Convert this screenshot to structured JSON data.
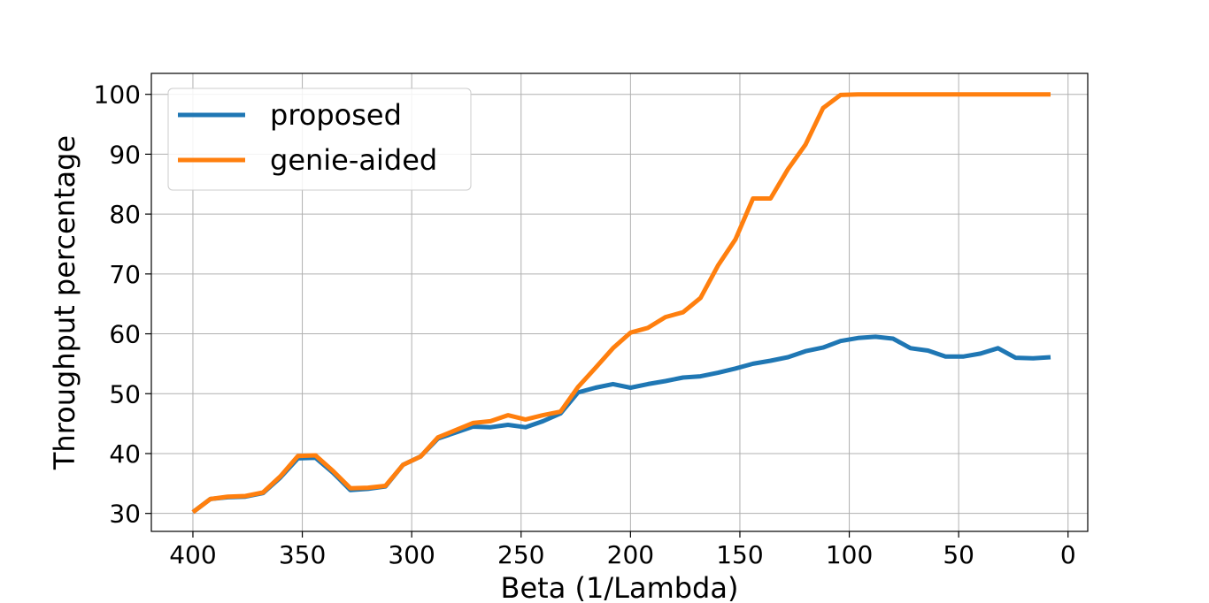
{
  "chart_data": {
    "type": "line",
    "title": "",
    "xlabel": "Beta (1/Lambda)",
    "ylabel": "Throughput percentage",
    "xlim": [
      419,
      -9
    ],
    "ylim": [
      27,
      103.5
    ],
    "x_inverted": true,
    "grid": true,
    "legend_position": "top-left",
    "xticks": [
      400,
      350,
      300,
      250,
      200,
      150,
      100,
      50,
      0
    ],
    "yticks": [
      30,
      40,
      50,
      60,
      70,
      80,
      90,
      100
    ],
    "x": [
      400,
      392,
      384,
      376,
      368,
      360,
      352,
      344,
      336,
      328,
      320,
      312,
      304,
      296,
      288,
      280,
      272,
      264,
      256,
      248,
      240,
      232,
      224,
      216,
      208,
      200,
      192,
      184,
      176,
      168,
      160,
      152,
      144,
      136,
      128,
      120,
      112,
      104,
      96,
      88,
      80,
      72,
      64,
      56,
      48,
      40,
      32,
      24,
      16,
      8
    ],
    "series": [
      {
        "name": "proposed",
        "color": "#1f77b4",
        "values": [
          30.2,
          32.4,
          32.7,
          32.8,
          33.4,
          36.0,
          39.2,
          39.3,
          36.8,
          33.9,
          34.1,
          34.5,
          38.1,
          39.5,
          42.5,
          43.5,
          44.5,
          44.4,
          44.8,
          44.4,
          45.4,
          46.7,
          50.2,
          51.0,
          51.6,
          51.0,
          51.6,
          52.1,
          52.7,
          52.9,
          53.5,
          54.2,
          55.0,
          55.5,
          56.1,
          57.1,
          57.7,
          58.8,
          59.3,
          59.5,
          59.2,
          57.6,
          57.2,
          56.2,
          56.2,
          56.7,
          57.6,
          56.0,
          55.9,
          56.1
        ]
      },
      {
        "name": "genie-aided",
        "color": "#ff7f0e",
        "values": [
          30.2,
          32.4,
          32.8,
          32.9,
          33.5,
          36.2,
          39.6,
          39.7,
          37.1,
          34.2,
          34.3,
          34.6,
          38.1,
          39.5,
          42.7,
          43.9,
          45.1,
          45.4,
          46.4,
          45.7,
          46.4,
          47.0,
          51.1,
          54.3,
          57.6,
          60.2,
          61.0,
          62.8,
          63.6,
          66.0,
          71.4,
          75.8,
          82.6,
          82.6,
          87.5,
          91.6,
          97.7,
          99.9,
          100.0,
          100.0,
          100.0,
          100.0,
          100.0,
          100.0,
          100.0,
          100.0,
          100.0,
          100.0,
          100.0,
          100.0
        ]
      }
    ]
  }
}
